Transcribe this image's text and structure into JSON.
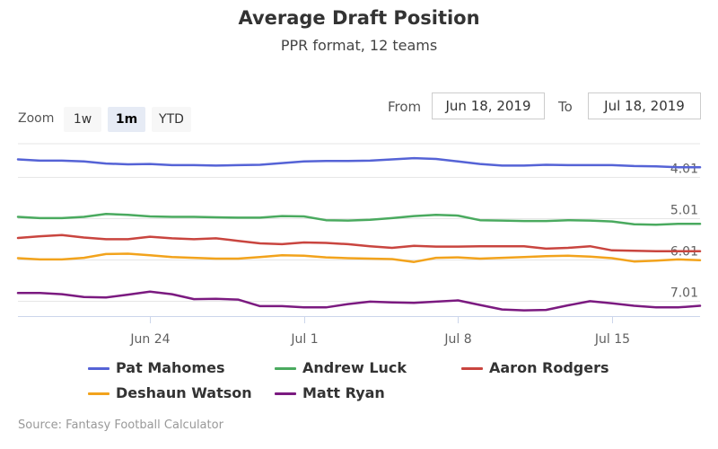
{
  "chart_data": {
    "type": "line",
    "title": "Average Draft Position",
    "subtitle": "PPR format, 12 teams",
    "source": "Source: Fantasy Football Calculator",
    "x_start": "2019-06-18",
    "x_ticks": [
      "Jun 24",
      "Jul 1",
      "Jul 8",
      "Jul 15"
    ],
    "y_ticks": [
      "4.01",
      "5.01",
      "6.01",
      "7.01"
    ],
    "y_tick_values": [
      4.01,
      5.01,
      6.01,
      7.01
    ],
    "ylim": [
      3.2,
      7.37
    ],
    "y_reversed": true,
    "grid": true,
    "legend_position": "bottom",
    "series": [
      {
        "name": "Pat Mahomes",
        "color": "#5563d6",
        "values": [
          3.58,
          3.61,
          3.61,
          3.63,
          3.68,
          3.7,
          3.69,
          3.72,
          3.72,
          3.73,
          3.72,
          3.71,
          3.67,
          3.63,
          3.62,
          3.62,
          3.61,
          3.58,
          3.55,
          3.57,
          3.63,
          3.69,
          3.73,
          3.73,
          3.71,
          3.72,
          3.72,
          3.72,
          3.74,
          3.75,
          3.77,
          3.77
        ]
      },
      {
        "name": "Andrew Luck",
        "color": "#4aaa5f",
        "values": [
          4.97,
          5.0,
          5.0,
          4.97,
          4.9,
          4.92,
          4.96,
          4.97,
          4.97,
          4.98,
          4.99,
          4.99,
          4.95,
          4.96,
          5.05,
          5.06,
          5.04,
          5.0,
          4.95,
          4.92,
          4.94,
          5.05,
          5.06,
          5.07,
          5.07,
          5.05,
          5.06,
          5.08,
          5.15,
          5.16,
          5.14,
          5.14
        ]
      },
      {
        "name": "Aaron Rodgers",
        "color": "#c9453f",
        "values": [
          5.48,
          5.44,
          5.41,
          5.47,
          5.51,
          5.51,
          5.45,
          5.49,
          5.51,
          5.49,
          5.55,
          5.61,
          5.63,
          5.59,
          5.6,
          5.63,
          5.68,
          5.72,
          5.67,
          5.69,
          5.69,
          5.68,
          5.68,
          5.68,
          5.74,
          5.72,
          5.68,
          5.78,
          5.79,
          5.8,
          5.8,
          5.8
        ]
      },
      {
        "name": "Deshaun Watson",
        "color": "#f2a31c",
        "values": [
          5.97,
          6.0,
          6.0,
          5.96,
          5.87,
          5.86,
          5.9,
          5.94,
          5.96,
          5.98,
          5.98,
          5.94,
          5.9,
          5.91,
          5.95,
          5.97,
          5.98,
          5.99,
          6.06,
          5.96,
          5.95,
          5.98,
          5.96,
          5.94,
          5.92,
          5.91,
          5.93,
          5.97,
          6.05,
          6.03,
          6.0,
          6.02
        ]
      },
      {
        "name": "Matt Ryan",
        "color": "#7b1a80",
        "values": [
          6.81,
          6.81,
          6.84,
          6.91,
          6.92,
          6.85,
          6.78,
          6.84,
          6.96,
          6.95,
          6.97,
          7.13,
          7.13,
          7.16,
          7.16,
          7.08,
          7.02,
          7.04,
          7.05,
          7.02,
          6.99,
          7.1,
          7.21,
          7.23,
          7.22,
          7.11,
          7.01,
          7.06,
          7.12,
          7.16,
          7.16,
          7.12
        ]
      }
    ]
  },
  "zoom": {
    "label": "Zoom",
    "buttons": [
      "1w",
      "1m",
      "YTD"
    ],
    "selected": "1m"
  },
  "range": {
    "from_label": "From",
    "from_value": "Jun 18, 2019",
    "to_label": "To",
    "to_value": "Jul 18, 2019"
  }
}
